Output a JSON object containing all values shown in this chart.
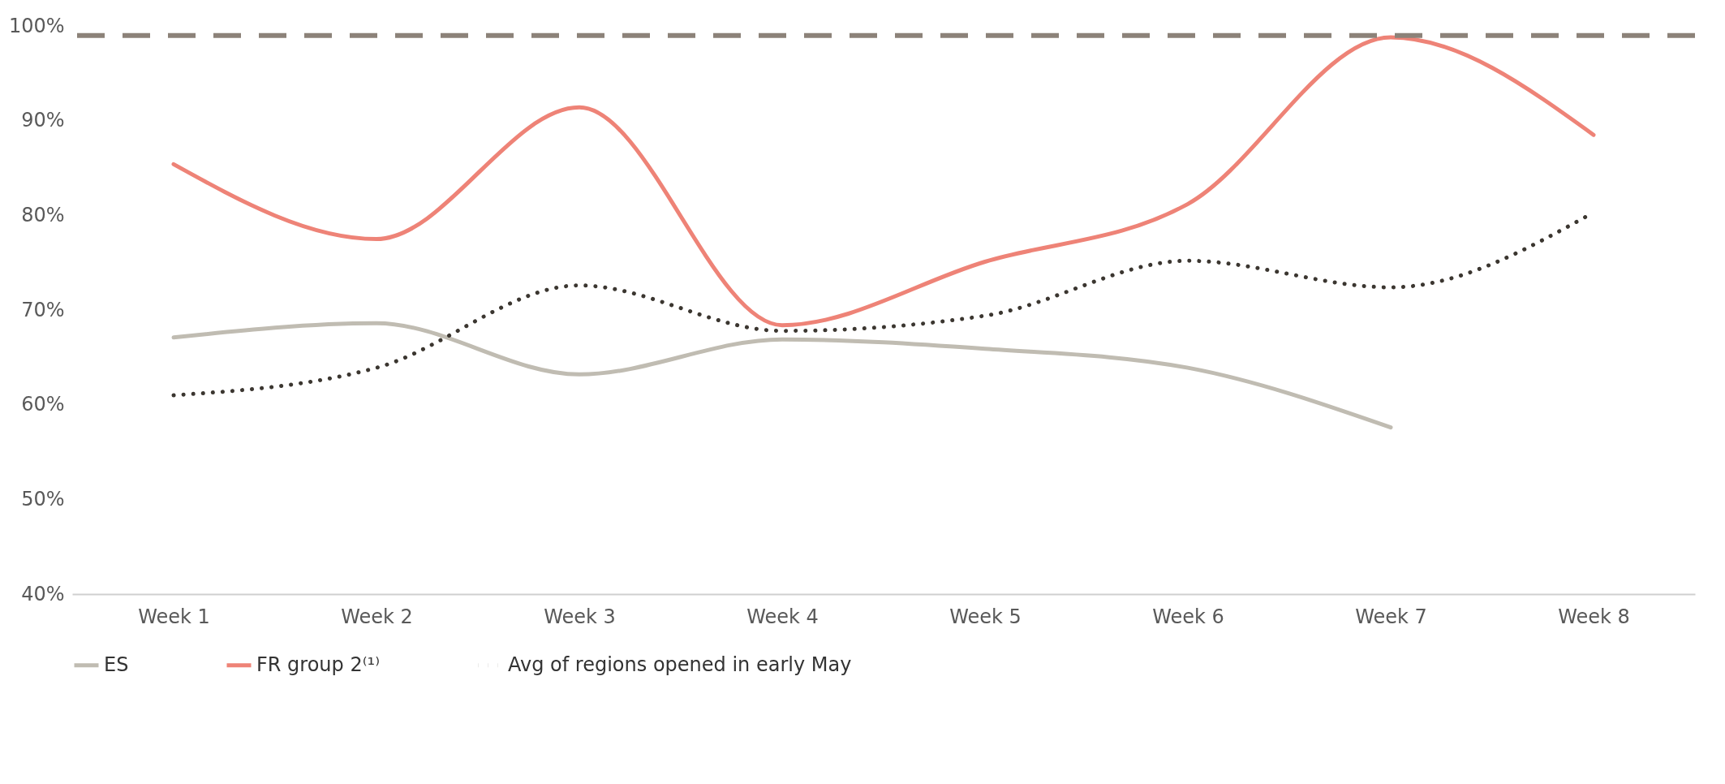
{
  "chart_data": {
    "type": "line",
    "categories": [
      "Week 1",
      "Week 2",
      "Week 3",
      "Week 4",
      "Week 5",
      "Week 6",
      "Week 7",
      "Week 8"
    ],
    "series": [
      {
        "name": "ES",
        "color": "#c0bcb2",
        "line_style": "solid",
        "values": [
          67.1,
          68.6,
          63.2,
          66.9,
          65.9,
          63.9,
          57.6,
          null
        ]
      },
      {
        "name": "FR group 2⁽¹⁾",
        "color": "#ee8377",
        "line_style": "solid",
        "values": [
          85.4,
          77.5,
          91.4,
          68.4,
          75.1,
          81.2,
          98.8,
          88.5
        ]
      },
      {
        "name": "Avg of regions opened in early May",
        "color": "#3b3630",
        "line_style": "dotted",
        "values": [
          61,
          63.9,
          72.6,
          67.8,
          69.4,
          75.2,
          72.4,
          80.3
        ]
      }
    ],
    "ylim": [
      40,
      100
    ],
    "yticks": [
      {
        "value": 40,
        "label": "40%"
      },
      {
        "value": 50,
        "label": "50%"
      },
      {
        "value": 60,
        "label": "60%"
      },
      {
        "value": 70,
        "label": "70%"
      },
      {
        "value": 80,
        "label": "80%"
      },
      {
        "value": 90,
        "label": "90%"
      },
      {
        "value": 100,
        "label": "100%"
      }
    ],
    "ref_lines": [
      {
        "axis": "y",
        "value": 99,
        "color": "#8c8279",
        "line_style": "dashed"
      }
    ],
    "legend": "bottom"
  }
}
